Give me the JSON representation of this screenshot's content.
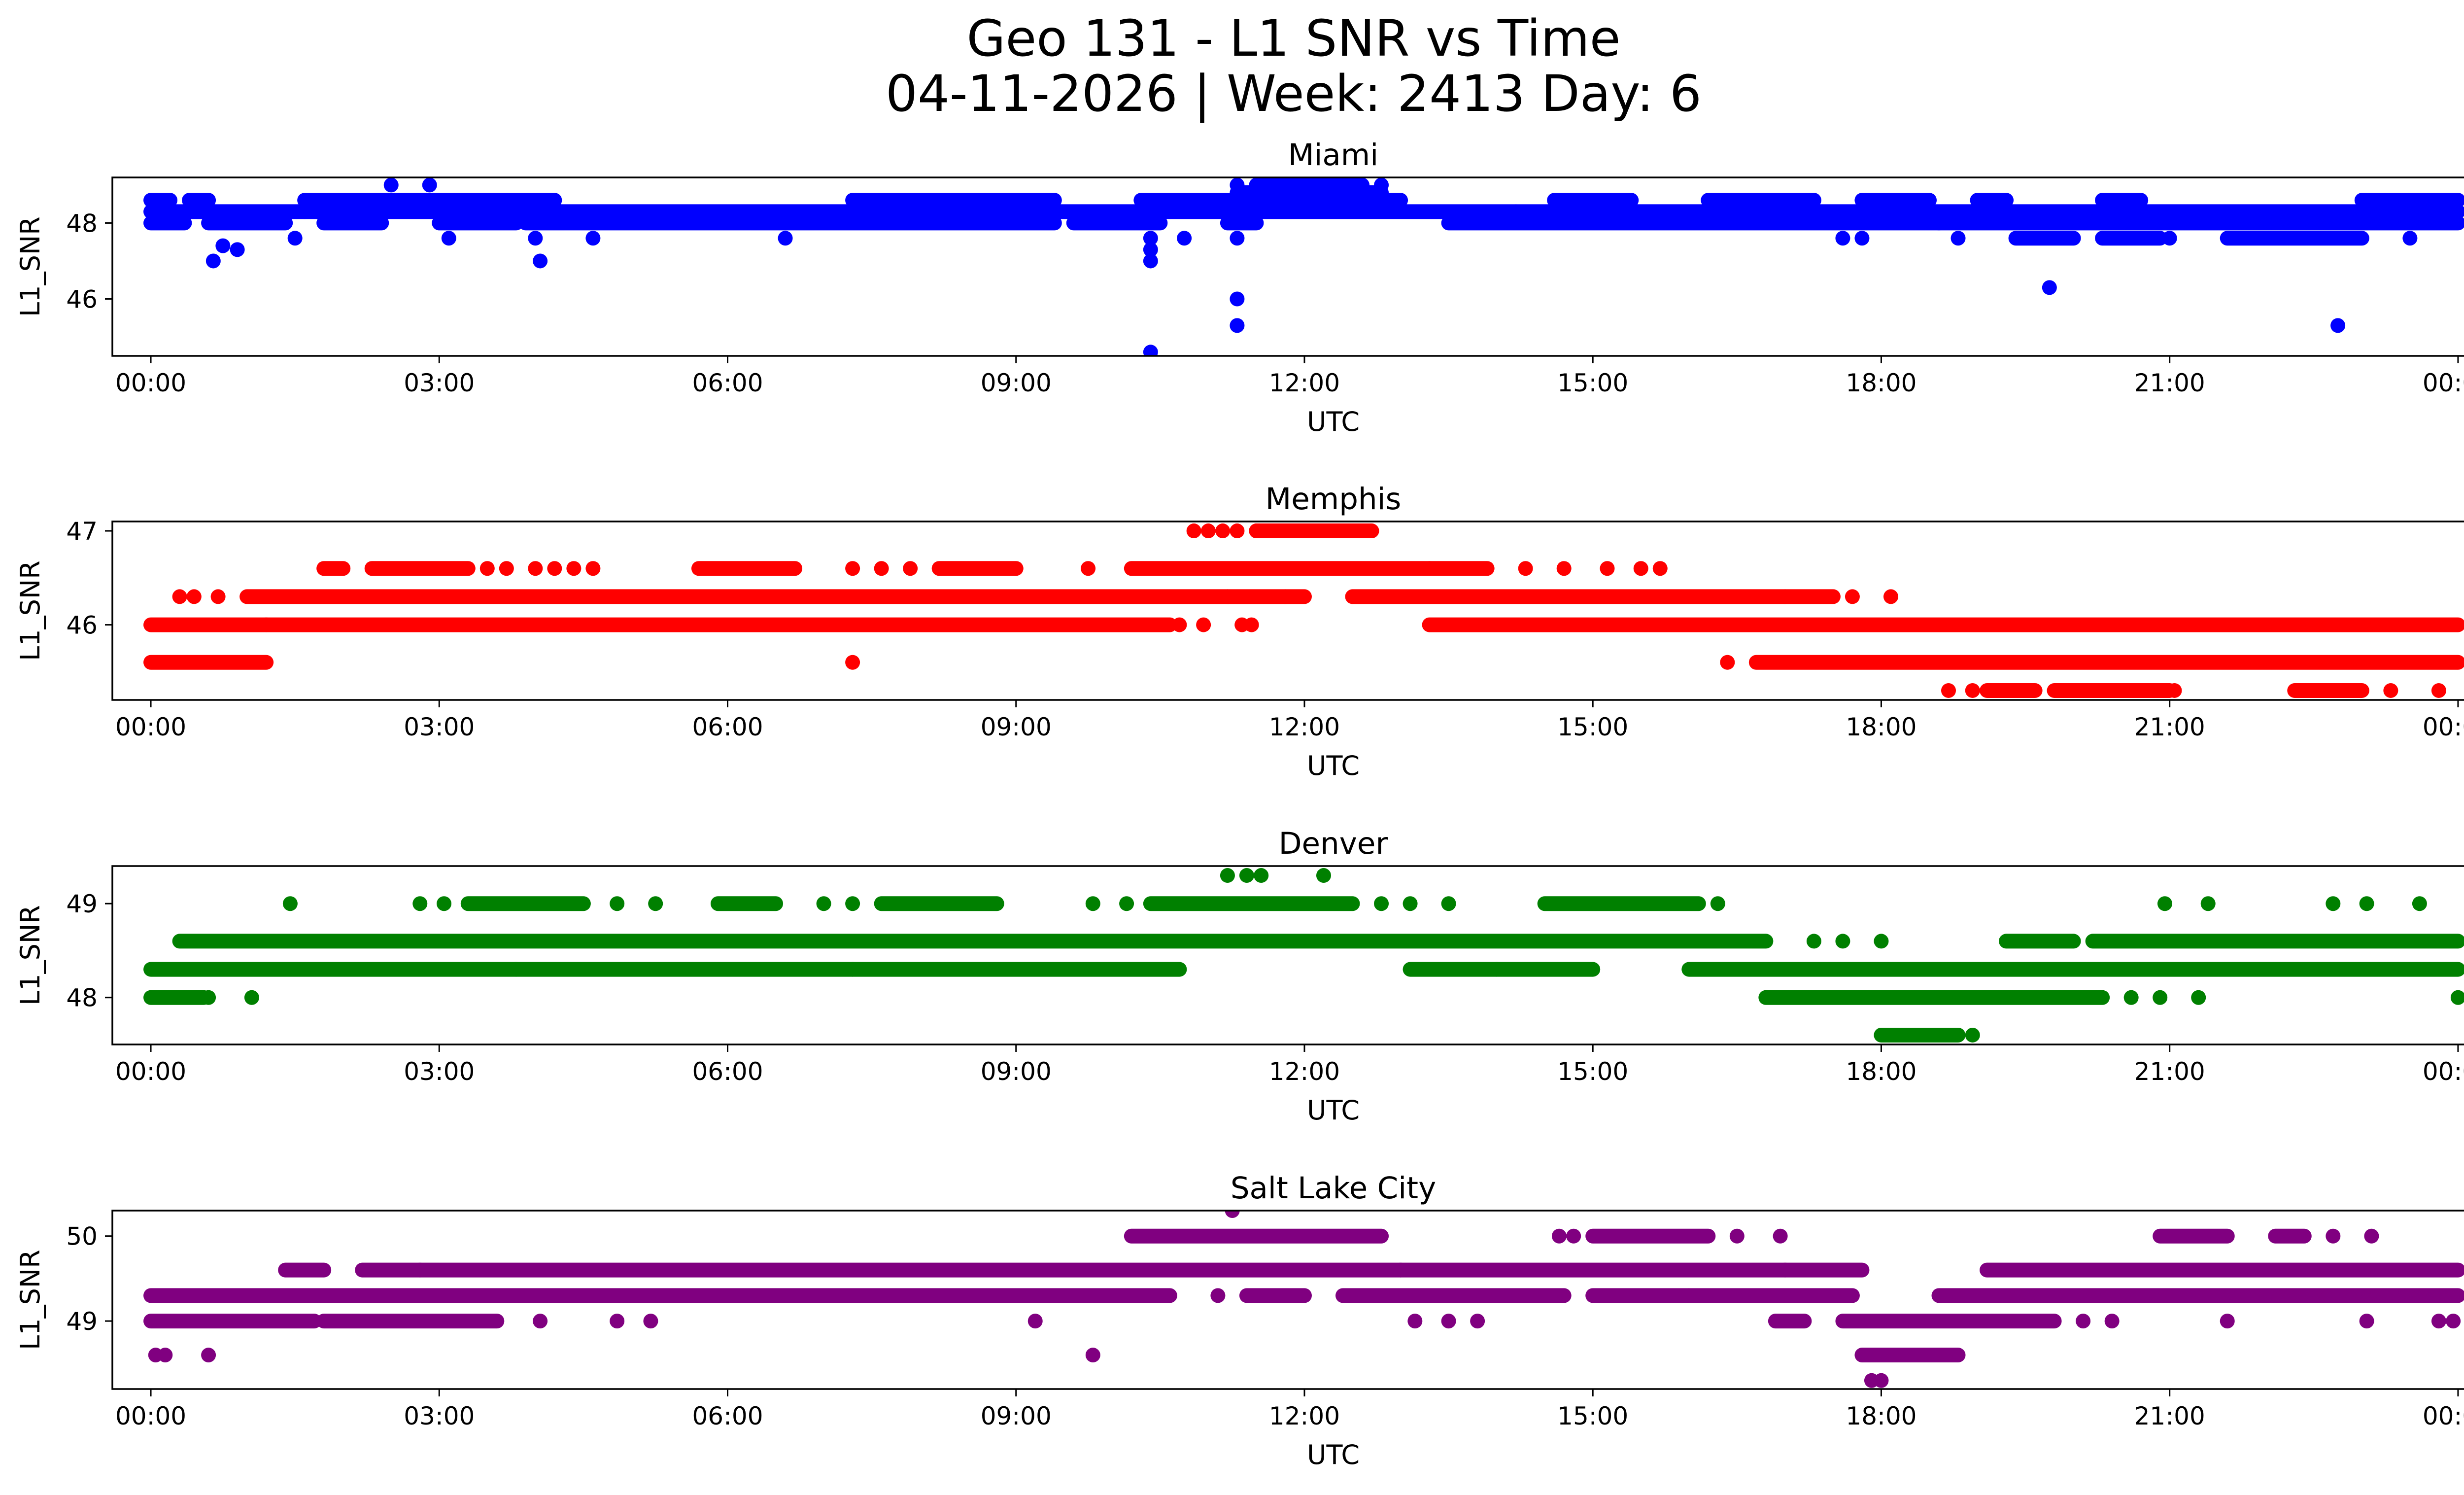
{
  "figure": {
    "title_line1": "Geo 131 - L1 SNR vs Time",
    "title_line2": "04-11-2026 | Week: 2413 Day: 6"
  },
  "chart_data": [
    {
      "type": "scatter",
      "title": "Miami",
      "xlabel": "UTC",
      "ylabel": "L1_SNR",
      "color": "#0000ff",
      "xlim": [
        -0.4,
        25.0
      ],
      "ylim": [
        44.5,
        49.2
      ],
      "xticks": [
        "00:00",
        "03:00",
        "06:00",
        "09:00",
        "12:00",
        "15:00",
        "18:00",
        "21:00",
        "00:00"
      ],
      "yticks": [
        46,
        48
      ],
      "bands": [
        {
          "y": 48.3,
          "segments": [
            [
              0,
              1.6
            ],
            [
              1.6,
              7.3
            ],
            [
              7.3,
              10.6
            ],
            [
              10.6,
              11.2
            ],
            [
              11.2,
              14.2
            ],
            [
              14.2,
              19.2
            ],
            [
              19.2,
              20.4
            ],
            [
              20.4,
              24.0
            ]
          ]
        },
        {
          "y": 48.0,
          "segments": [
            [
              0,
              0.35
            ],
            [
              0.6,
              1.4
            ],
            [
              1.8,
              2.4
            ],
            [
              3.0,
              3.8
            ],
            [
              3.9,
              6.6
            ],
            [
              6.6,
              9.4
            ],
            [
              9.6,
              10.5
            ],
            [
              11.2,
              11.5
            ],
            [
              13.5,
              18.6
            ],
            [
              18.6,
              24.0
            ]
          ]
        },
        {
          "y": 48.6,
          "segments": [
            [
              0,
              0.2
            ],
            [
              0.4,
              0.6
            ],
            [
              1.6,
              3.7
            ],
            [
              3.7,
              4.2
            ],
            [
              7.3,
              9.4
            ],
            [
              10.3,
              13.0
            ],
            [
              14.6,
              15.4
            ],
            [
              16.2,
              17.3
            ],
            [
              17.8,
              18.5
            ],
            [
              19.0,
              19.3
            ],
            [
              20.3,
              20.7
            ],
            [
              23.0,
              24.0
            ]
          ]
        },
        {
          "y": 47.6,
          "segments": [
            [
              19.4,
              20.0
            ],
            [
              20.3,
              20.9
            ],
            [
              21.6,
              23.0
            ]
          ]
        },
        {
          "y": 48.8,
          "segments": [
            [
              11.3,
              12.8
            ]
          ]
        },
        {
          "y": 49.0,
          "segments": [
            [
              11.5,
              12.6
            ]
          ]
        }
      ],
      "points": [
        {
          "x": 2.5,
          "y": 49.0
        },
        {
          "x": 2.9,
          "y": 49.0
        },
        {
          "x": 12.8,
          "y": 49.0
        },
        {
          "x": 11.3,
          "y": 49.0
        },
        {
          "x": 0.65,
          "y": 47.0
        },
        {
          "x": 0.75,
          "y": 47.4
        },
        {
          "x": 0.9,
          "y": 47.3
        },
        {
          "x": 1.5,
          "y": 47.6
        },
        {
          "x": 3.1,
          "y": 47.6
        },
        {
          "x": 4.05,
          "y": 47.0
        },
        {
          "x": 4.0,
          "y": 47.6
        },
        {
          "x": 4.6,
          "y": 47.6
        },
        {
          "x": 6.6,
          "y": 47.6
        },
        {
          "x": 10.4,
          "y": 47.6
        },
        {
          "x": 10.4,
          "y": 47.3
        },
        {
          "x": 10.4,
          "y": 47.0
        },
        {
          "x": 10.75,
          "y": 47.6
        },
        {
          "x": 11.3,
          "y": 47.6
        },
        {
          "x": 11.3,
          "y": 46.0
        },
        {
          "x": 11.3,
          "y": 45.3
        },
        {
          "x": 10.4,
          "y": 44.6
        },
        {
          "x": 17.6,
          "y": 47.6
        },
        {
          "x": 17.8,
          "y": 47.6
        },
        {
          "x": 18.8,
          "y": 47.6
        },
        {
          "x": 19.75,
          "y": 46.3
        },
        {
          "x": 21.0,
          "y": 47.6
        },
        {
          "x": 22.75,
          "y": 45.3
        },
        {
          "x": 23.5,
          "y": 47.6
        }
      ]
    },
    {
      "type": "scatter",
      "title": "Memphis",
      "xlabel": "UTC",
      "ylabel": "L1_SNR",
      "color": "#ff0000",
      "xlim": [
        -0.4,
        25.0
      ],
      "ylim": [
        45.2,
        47.1
      ],
      "xticks": [
        "00:00",
        "03:00",
        "06:00",
        "09:00",
        "12:00",
        "15:00",
        "18:00",
        "21:00",
        "00:00"
      ],
      "yticks": [
        46,
        47
      ],
      "bands": [
        {
          "y": 46.0,
          "segments": [
            [
              0,
              1.2
            ],
            [
              1.2,
              10.6
            ],
            [
              13.3,
              24.0
            ]
          ]
        },
        {
          "y": 45.6,
          "segments": [
            [
              0,
              1.2
            ],
            [
              16.7,
              24.0
            ]
          ]
        },
        {
          "y": 46.3,
          "segments": [
            [
              1.0,
              11.2
            ],
            [
              11.2,
              12.0
            ],
            [
              12.5,
              17.0
            ],
            [
              17.0,
              17.5
            ]
          ]
        },
        {
          "y": 46.6,
          "segments": [
            [
              1.8,
              2.0
            ],
            [
              2.3,
              3.3
            ],
            [
              5.7,
              6.7
            ],
            [
              8.2,
              9.0
            ],
            [
              10.2,
              13.3
            ],
            [
              13.3,
              13.9
            ]
          ]
        },
        {
          "y": 47.0,
          "segments": [
            [
              11.5,
              12.7
            ]
          ]
        },
        {
          "y": 45.3,
          "segments": [
            [
              19.1,
              19.6
            ],
            [
              19.8,
              21.0
            ],
            [
              22.3,
              23.0
            ]
          ]
        }
      ],
      "points": [
        {
          "x": 0.3,
          "y": 46.3
        },
        {
          "x": 0.45,
          "y": 46.3
        },
        {
          "x": 0.7,
          "y": 46.3
        },
        {
          "x": 11.5,
          "y": 47.0
        },
        {
          "x": 10.85,
          "y": 47.0
        },
        {
          "x": 11.0,
          "y": 47.0
        },
        {
          "x": 11.15,
          "y": 47.0
        },
        {
          "x": 11.3,
          "y": 47.0
        },
        {
          "x": 3.5,
          "y": 46.6
        },
        {
          "x": 3.7,
          "y": 46.6
        },
        {
          "x": 4.0,
          "y": 46.6
        },
        {
          "x": 4.2,
          "y": 46.6
        },
        {
          "x": 4.4,
          "y": 46.6
        },
        {
          "x": 4.6,
          "y": 46.6
        },
        {
          "x": 7.3,
          "y": 46.6
        },
        {
          "x": 7.6,
          "y": 46.6
        },
        {
          "x": 7.9,
          "y": 46.6
        },
        {
          "x": 9.75,
          "y": 46.6
        },
        {
          "x": 14.3,
          "y": 46.6
        },
        {
          "x": 14.7,
          "y": 46.6
        },
        {
          "x": 15.15,
          "y": 46.6
        },
        {
          "x": 15.5,
          "y": 46.6
        },
        {
          "x": 15.7,
          "y": 46.6
        },
        {
          "x": 10.7,
          "y": 46.0
        },
        {
          "x": 10.95,
          "y": 46.0
        },
        {
          "x": 11.35,
          "y": 46.0
        },
        {
          "x": 11.45,
          "y": 46.0
        },
        {
          "x": 11.8,
          "y": 46.3
        },
        {
          "x": 7.3,
          "y": 45.6
        },
        {
          "x": 16.4,
          "y": 45.6
        },
        {
          "x": 17.7,
          "y": 46.3
        },
        {
          "x": 18.1,
          "y": 46.3
        },
        {
          "x": 18.7,
          "y": 45.3
        },
        {
          "x": 18.95,
          "y": 45.3
        },
        {
          "x": 21.05,
          "y": 45.3
        },
        {
          "x": 23.3,
          "y": 45.3
        },
        {
          "x": 23.8,
          "y": 45.3
        }
      ]
    },
    {
      "type": "scatter",
      "title": "Denver",
      "xlabel": "UTC",
      "ylabel": "L1_SNR",
      "color": "#008000",
      "xlim": [
        -0.4,
        25.0
      ],
      "ylim": [
        47.5,
        49.4
      ],
      "xticks": [
        "00:00",
        "03:00",
        "06:00",
        "09:00",
        "12:00",
        "15:00",
        "18:00",
        "21:00",
        "00:00"
      ],
      "yticks": [
        48,
        49
      ],
      "bands": [
        {
          "y": 48.3,
          "segments": [
            [
              0,
              3.8
            ],
            [
              3.8,
              7.3
            ],
            [
              7.3,
              10.7
            ],
            [
              13.1,
              14.0
            ],
            [
              14.0,
              15.0
            ],
            [
              16.0,
              24.0
            ]
          ]
        },
        {
          "y": 48.6,
          "segments": [
            [
              0.3,
              16.8
            ],
            [
              19.3,
              20.0
            ],
            [
              20.2,
              24.0
            ]
          ]
        },
        {
          "y": 48.0,
          "segments": [
            [
              0,
              0.55
            ],
            [
              16.8,
              20.3
            ]
          ]
        },
        {
          "y": 49.0,
          "segments": [
            [
              3.3,
              4.5
            ],
            [
              5.9,
              6.5
            ],
            [
              7.6,
              8.8
            ],
            [
              10.4,
              12.5
            ],
            [
              14.5,
              16.1
            ]
          ]
        },
        {
          "y": 47.6,
          "segments": [
            [
              18.0,
              18.8
            ]
          ]
        }
      ],
      "points": [
        {
          "x": 0.6,
          "y": 48.0
        },
        {
          "x": 1.05,
          "y": 48.0
        },
        {
          "x": 1.45,
          "y": 49.0
        },
        {
          "x": 2.8,
          "y": 49.0
        },
        {
          "x": 3.05,
          "y": 49.0
        },
        {
          "x": 4.85,
          "y": 49.0
        },
        {
          "x": 5.25,
          "y": 49.0
        },
        {
          "x": 7.0,
          "y": 49.0
        },
        {
          "x": 7.3,
          "y": 49.0
        },
        {
          "x": 9.8,
          "y": 49.0
        },
        {
          "x": 10.15,
          "y": 49.0
        },
        {
          "x": 12.8,
          "y": 49.0
        },
        {
          "x": 13.1,
          "y": 49.0
        },
        {
          "x": 13.5,
          "y": 49.0
        },
        {
          "x": 16.3,
          "y": 49.0
        },
        {
          "x": 11.2,
          "y": 49.3
        },
        {
          "x": 11.4,
          "y": 49.3
        },
        {
          "x": 11.55,
          "y": 49.3
        },
        {
          "x": 12.2,
          "y": 49.3
        },
        {
          "x": 17.3,
          "y": 48.6
        },
        {
          "x": 17.6,
          "y": 48.6
        },
        {
          "x": 18.0,
          "y": 48.6
        },
        {
          "x": 18.95,
          "y": 47.6
        },
        {
          "x": 20.6,
          "y": 48.0
        },
        {
          "x": 20.9,
          "y": 48.0
        },
        {
          "x": 21.3,
          "y": 48.0
        },
        {
          "x": 20.95,
          "y": 49.0
        },
        {
          "x": 21.4,
          "y": 49.0
        },
        {
          "x": 22.7,
          "y": 49.0
        },
        {
          "x": 23.05,
          "y": 49.0
        },
        {
          "x": 23.6,
          "y": 49.0
        },
        {
          "x": 24.0,
          "y": 48.0
        }
      ]
    },
    {
      "type": "scatter",
      "title": "Salt Lake City",
      "xlabel": "UTC",
      "ylabel": "L1_SNR",
      "color": "#800080",
      "xlim": [
        -0.4,
        25.0
      ],
      "ylim": [
        48.2,
        50.3
      ],
      "xticks": [
        "00:00",
        "03:00",
        "06:00",
        "09:00",
        "12:00",
        "15:00",
        "18:00",
        "21:00",
        "00:00"
      ],
      "yticks": [
        49,
        50
      ],
      "bands": [
        {
          "y": 49.3,
          "segments": [
            [
              0,
              10.6
            ],
            [
              11.4,
              12.0
            ],
            [
              12.4,
              14.7
            ],
            [
              15.0,
              16.0
            ],
            [
              16.0,
              17.7
            ],
            [
              18.6,
              24.0
            ]
          ]
        },
        {
          "y": 49.6,
          "segments": [
            [
              1.4,
              1.8
            ],
            [
              2.2,
              2.8
            ],
            [
              2.8,
              13.0
            ],
            [
              13.0,
              17.0
            ],
            [
              17.0,
              17.8
            ],
            [
              19.1,
              24.0
            ]
          ]
        },
        {
          "y": 49.0,
          "segments": [
            [
              0,
              1.7
            ],
            [
              1.8,
              3.6
            ],
            [
              16.9,
              17.2
            ],
            [
              17.6,
              19.8
            ]
          ]
        },
        {
          "y": 50.0,
          "segments": [
            [
              10.2,
              12.8
            ],
            [
              15.0,
              16.2
            ],
            [
              20.9,
              21.6
            ],
            [
              22.1,
              22.4
            ]
          ]
        },
        {
          "y": 48.6,
          "segments": [
            [
              17.8,
              18.8
            ]
          ]
        }
      ],
      "points": [
        {
          "x": 0.05,
          "y": 48.6
        },
        {
          "x": 0.15,
          "y": 48.6
        },
        {
          "x": 0.6,
          "y": 48.6
        },
        {
          "x": 4.05,
          "y": 49.0
        },
        {
          "x": 4.85,
          "y": 49.0
        },
        {
          "x": 5.2,
          "y": 49.0
        },
        {
          "x": 9.2,
          "y": 49.0
        },
        {
          "x": 9.8,
          "y": 48.6
        },
        {
          "x": 11.25,
          "y": 50.3
        },
        {
          "x": 11.1,
          "y": 49.3
        },
        {
          "x": 13.15,
          "y": 49.0
        },
        {
          "x": 13.5,
          "y": 49.0
        },
        {
          "x": 13.8,
          "y": 49.0
        },
        {
          "x": 14.65,
          "y": 50.0
        },
        {
          "x": 14.8,
          "y": 50.0
        },
        {
          "x": 16.5,
          "y": 50.0
        },
        {
          "x": 16.95,
          "y": 50.0
        },
        {
          "x": 17.9,
          "y": 48.3
        },
        {
          "x": 18.0,
          "y": 48.3
        },
        {
          "x": 20.1,
          "y": 49.0
        },
        {
          "x": 20.4,
          "y": 49.0
        },
        {
          "x": 21.6,
          "y": 49.0
        },
        {
          "x": 22.7,
          "y": 50.0
        },
        {
          "x": 23.1,
          "y": 50.0
        },
        {
          "x": 23.05,
          "y": 49.0
        },
        {
          "x": 23.8,
          "y": 49.0
        },
        {
          "x": 23.95,
          "y": 49.0
        }
      ]
    }
  ]
}
